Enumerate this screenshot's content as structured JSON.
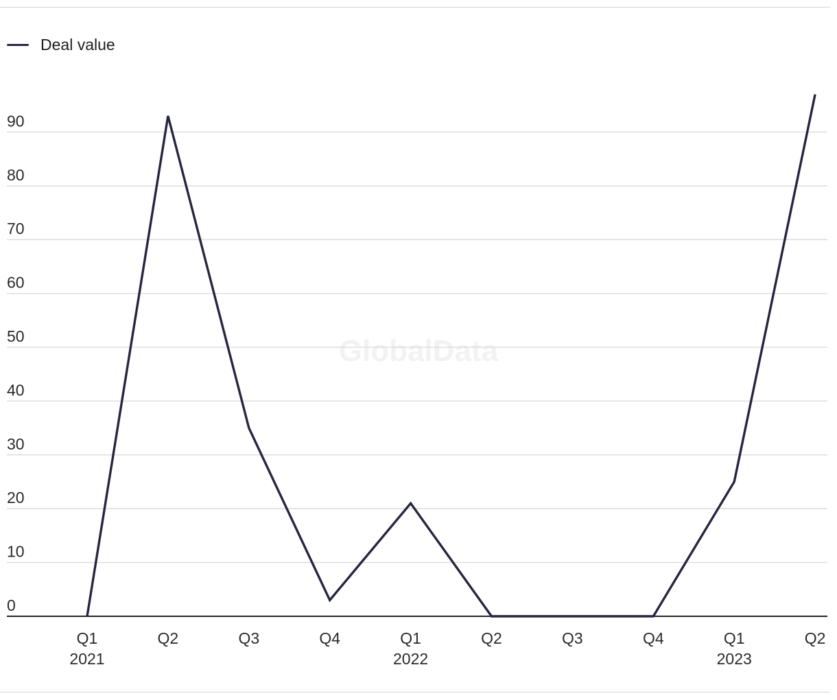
{
  "watermark": "GlobalData",
  "colors": {
    "series": "#262640",
    "grid": "#d9d9d9",
    "axis": "#222222",
    "rule": "#d6d6d6"
  },
  "chart_data": {
    "type": "line",
    "title": "",
    "xlabel": "",
    "ylabel": "",
    "legend_position": "top-left",
    "grid": true,
    "categories": [
      "Q1 2021",
      "Q2 2021",
      "Q3 2021",
      "Q4 2021",
      "Q1 2022",
      "Q2 2022",
      "Q3 2022",
      "Q4 2022",
      "Q1 2023",
      "Q2 2023"
    ],
    "tick_labels": [
      {
        "quarter": "Q1",
        "year": "2021"
      },
      {
        "quarter": "Q2",
        "year": ""
      },
      {
        "quarter": "Q3",
        "year": ""
      },
      {
        "quarter": "Q4",
        "year": ""
      },
      {
        "quarter": "Q1",
        "year": "2022"
      },
      {
        "quarter": "Q2",
        "year": ""
      },
      {
        "quarter": "Q3",
        "year": ""
      },
      {
        "quarter": "Q4",
        "year": ""
      },
      {
        "quarter": "Q1",
        "year": "2023"
      },
      {
        "quarter": "Q2",
        "year": ""
      }
    ],
    "yticks": [
      0,
      10,
      20,
      30,
      40,
      50,
      60,
      70,
      80,
      90
    ],
    "ylim": [
      0,
      97
    ],
    "series": [
      {
        "name": "Deal value",
        "values": [
          0,
          93,
          35,
          3,
          21,
          0,
          0,
          0,
          25,
          97
        ]
      }
    ]
  }
}
